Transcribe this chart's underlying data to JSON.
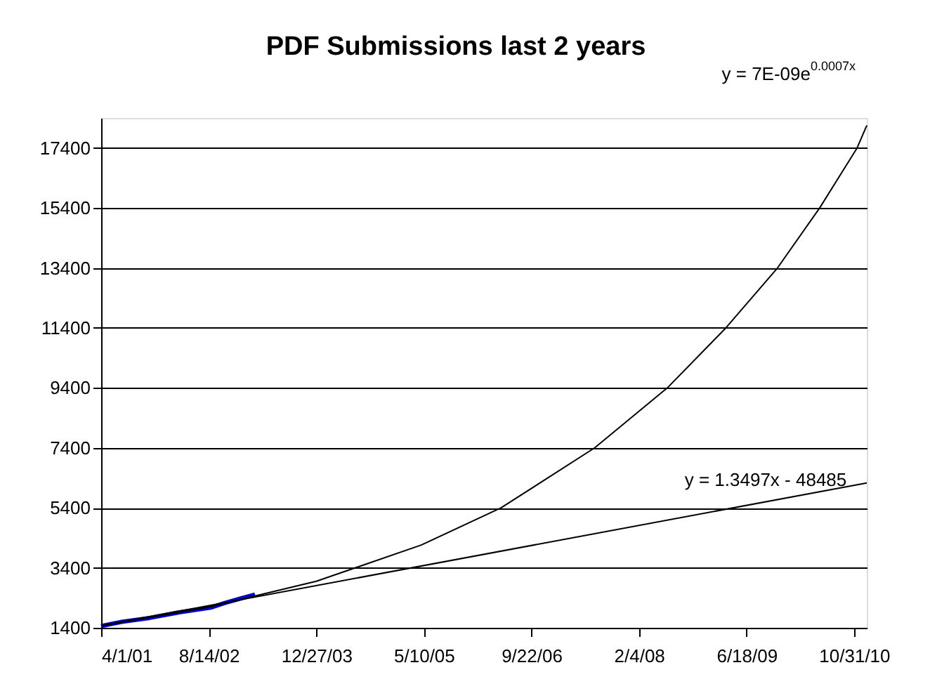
{
  "chart_data": {
    "type": "line",
    "title": "PDF Submissions last 2 years",
    "xlim": [
      "2001-04-01",
      "2010-12-29"
    ],
    "xticks": [
      {
        "value": "2001-04-01",
        "label": "4/1/01"
      },
      {
        "value": "2002-08-14",
        "label": "8/14/02"
      },
      {
        "value": "2003-12-27",
        "label": "12/27/03"
      },
      {
        "value": "2005-05-10",
        "label": "5/10/05"
      },
      {
        "value": "2006-09-22",
        "label": "9/22/06"
      },
      {
        "value": "2008-02-04",
        "label": "2/4/08"
      },
      {
        "value": "2009-06-18",
        "label": "6/18/09"
      },
      {
        "value": "2010-10-31",
        "label": "10/31/10"
      }
    ],
    "ylim": [
      1400,
      18400
    ],
    "yticks": [
      1400,
      3400,
      5400,
      7400,
      9400,
      11400,
      13400,
      15400,
      17400
    ],
    "grid": "y",
    "legend": false,
    "series": [
      {
        "color": "#0000cc",
        "x": [
          "2001-04-01",
          "2001-07-06",
          "2001-11-13",
          "2002-04-04",
          "2002-08-23",
          "2002-10-28",
          "2003-01-01",
          "2003-03-17"
        ],
        "values": [
          1460,
          1600,
          1730,
          1920,
          2070,
          2230,
          2360,
          2510
        ]
      },
      {
        "color": "#000000",
        "x": [
          "2001-04-01",
          "2002-08-14",
          "2003-12-27",
          "2005-04-28",
          "2006-05-04",
          "2007-07-13",
          "2008-06-15",
          "2009-03-14",
          "2009-11-09",
          "2010-05-24",
          "2010-11-14",
          "2010-12-29"
        ],
        "values": [
          1470,
          2090,
          2950,
          4160,
          5400,
          7400,
          9400,
          11400,
          13400,
          15400,
          17400,
          18150
        ]
      },
      {
        "color": "#000000",
        "x": [
          "2001-04-01",
          "2010-12-29"
        ],
        "values": [
          1470,
          6230
        ]
      }
    ],
    "annotations": [
      "y = 1.3497x - 48485",
      "y = 7E-09e$^{0.0007x}$"
    ]
  }
}
